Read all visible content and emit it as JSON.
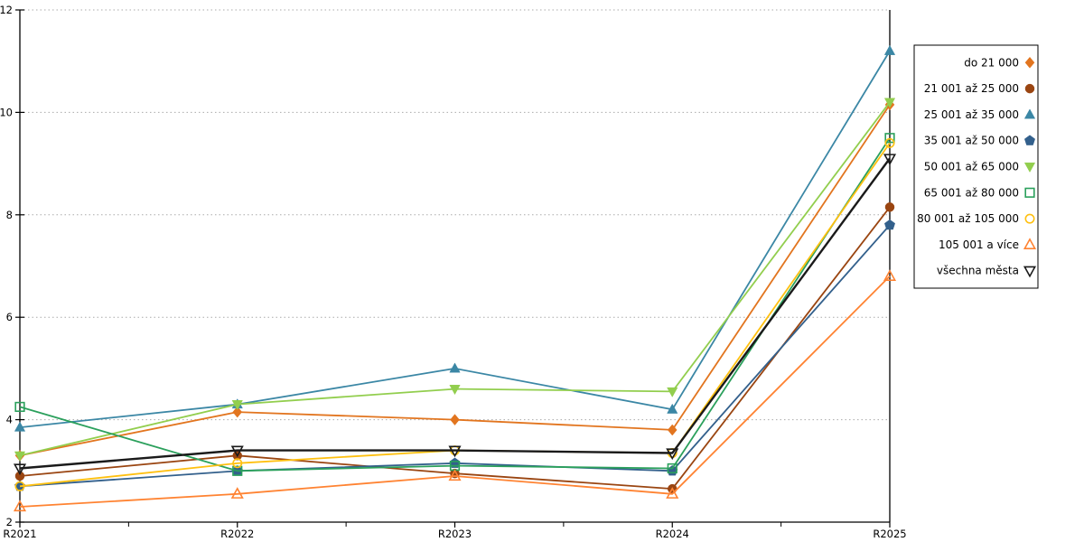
{
  "chart_data": {
    "type": "line",
    "title": "",
    "xlabel": "",
    "ylabel": "",
    "categories": [
      "R2021",
      "R2022",
      "R2023",
      "R2024",
      "R2025"
    ],
    "y_ticks": [
      2,
      4,
      6,
      8,
      10,
      12
    ],
    "ylim": [
      2,
      12
    ],
    "grid": "dotted-horizontal",
    "legend_position": "right",
    "axis_color": "#000000",
    "grid_color": "#aaaaaa",
    "series": [
      {
        "name": "do 21 000",
        "color": "#E2751F",
        "marker": "diamond",
        "filled": true,
        "values": [
          3.3,
          4.15,
          4.0,
          3.8,
          10.15
        ]
      },
      {
        "name": "21 001 až 25 000",
        "color": "#9A4511",
        "marker": "circle",
        "filled": true,
        "values": [
          2.9,
          3.3,
          2.95,
          2.65,
          8.15
        ]
      },
      {
        "name": "25 001 až 35 000",
        "color": "#3B87A5",
        "marker": "triangle-up",
        "filled": true,
        "values": [
          3.85,
          4.3,
          5.0,
          4.2,
          11.2
        ]
      },
      {
        "name": "35 001 až 50 000",
        "color": "#33608C",
        "marker": "pentagon",
        "filled": true,
        "values": [
          2.7,
          3.0,
          3.15,
          3.0,
          7.8
        ]
      },
      {
        "name": "50 001 až 65 000",
        "color": "#92CE4E",
        "marker": "triangle-down",
        "filled": true,
        "values": [
          3.3,
          4.3,
          4.6,
          4.55,
          10.2
        ]
      },
      {
        "name": "65 001 až 80 000",
        "color": "#2BA05C",
        "marker": "square",
        "filled": false,
        "values": [
          4.25,
          3.0,
          3.1,
          3.05,
          9.5
        ]
      },
      {
        "name": "80 001 až 105 000",
        "color": "#FFC010",
        "marker": "circle",
        "filled": false,
        "values": [
          2.7,
          3.15,
          3.4,
          3.35,
          9.4
        ]
      },
      {
        "name": "105 001 a více",
        "color": "#FF8332",
        "marker": "triangle-up",
        "filled": false,
        "values": [
          2.3,
          2.55,
          2.9,
          2.55,
          6.8
        ]
      },
      {
        "name": "všechna města",
        "color": "#1A1A1A",
        "marker": "triangle-down",
        "filled": false,
        "values": [
          3.05,
          3.4,
          3.4,
          3.35,
          9.1
        ],
        "line_width": 2.4
      }
    ]
  }
}
